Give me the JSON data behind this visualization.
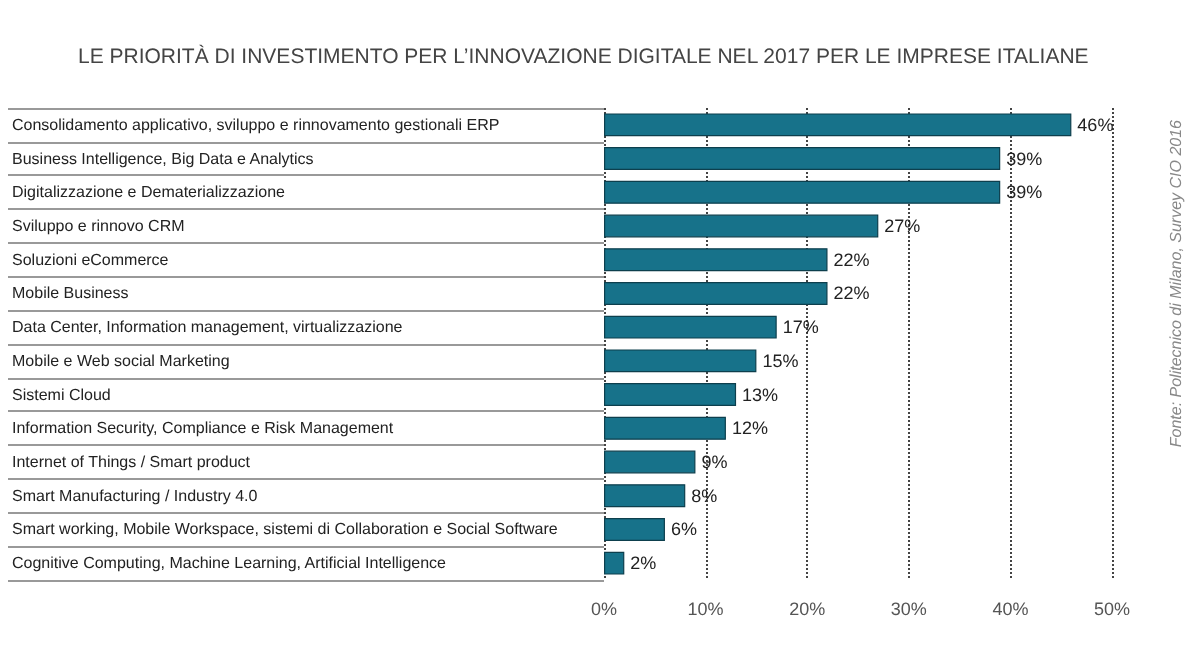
{
  "chart_data": {
    "type": "bar",
    "orientation": "horizontal",
    "title": "LE PRIORITÀ DI INVESTIMENTO PER L’INNOVAZIONE DIGITALE NEL 2017 PER LE IMPRESE ITALIANE",
    "categories": [
      "Consolidamento applicativo, sviluppo e rinnovamento gestionali ERP",
      "Business Intelligence, Big Data e Analytics",
      "Digitalizzazione e Dematerializzazione",
      "Sviluppo e rinnovo CRM",
      "Soluzioni eCommerce",
      "Mobile Business",
      "Data Center, Information management, virtualizzazione",
      "Mobile e Web social Marketing",
      "Sistemi Cloud",
      "Information Security, Compliance e Risk Management",
      "Internet of Things / Smart product",
      "Smart Manufacturing / Industry 4.0",
      "Smart working, Mobile Workspace, sistemi di Collaboration e Social Software",
      "Cognitive Computing, Machine Learning, Artificial Intelligence"
    ],
    "values": [
      46,
      39,
      39,
      27,
      22,
      22,
      17,
      15,
      13,
      12,
      9,
      8,
      6,
      2
    ],
    "value_labels": [
      "46%",
      "39%",
      "39%",
      "27%",
      "22%",
      "22%",
      "17%",
      "15%",
      "13%",
      "12%",
      "9%",
      "8%",
      "6%",
      "2%"
    ],
    "color": "#17728a",
    "xlim": [
      0,
      50
    ],
    "xticks": [
      {
        "value": 0,
        "label": "0%"
      },
      {
        "value": 10,
        "label": "10%"
      },
      {
        "value": 20,
        "label": "20%"
      },
      {
        "value": 30,
        "label": "30%"
      },
      {
        "value": 40,
        "label": "40%"
      },
      {
        "value": 50,
        "label": "50%"
      }
    ],
    "grid": "x",
    "annotations": [
      "Fonte: Politecnico di Milano, Survey CIO 2016"
    ]
  }
}
